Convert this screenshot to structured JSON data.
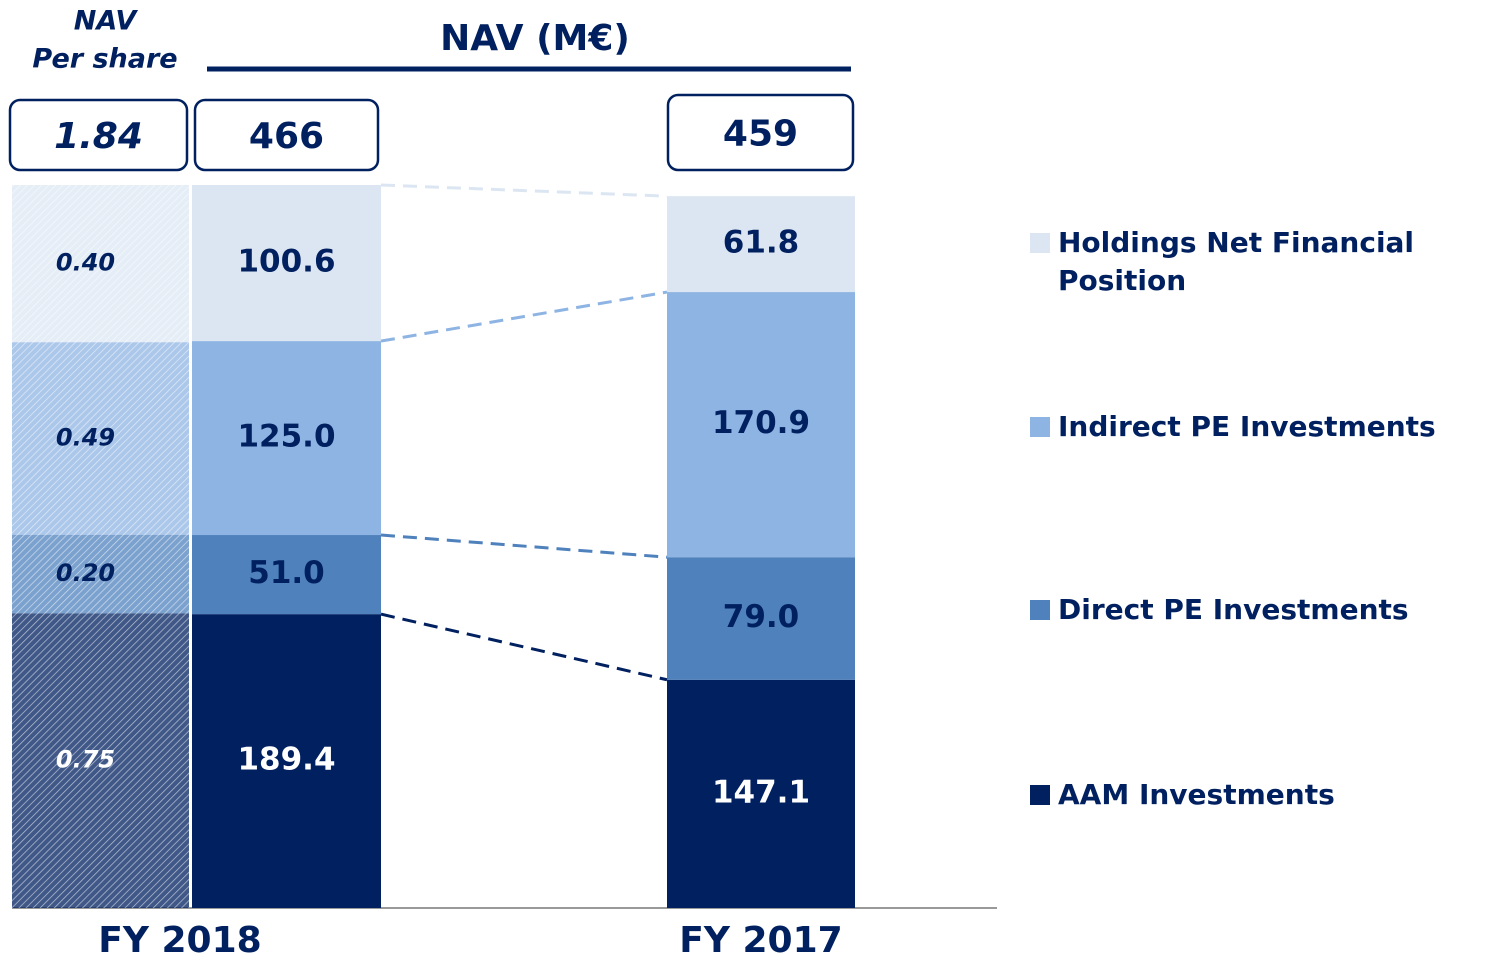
{
  "chart_data": [
    {
      "type": "stacked-bar",
      "title": [
        "NAV",
        "Per share"
      ],
      "ylim": [
        0,
        1.84
      ],
      "total": 1.84,
      "series": [
        {
          "color": "#002060",
          "values": [
            0.75
          ],
          "value_labels": [
            "0.75"
          ]
        },
        {
          "color": "#4f81bd",
          "values": [
            0.2
          ],
          "value_labels": [
            "0.20"
          ]
        },
        {
          "color": "#8eb4e3",
          "values": [
            0.49
          ],
          "value_labels": [
            "0.49"
          ]
        },
        {
          "color": "#dce6f2",
          "values": [
            0.4
          ],
          "value_labels": [
            "0.40"
          ]
        }
      ]
    },
    {
      "type": "stacked-bar",
      "title": "NAV (M€)",
      "categories": [
        "FY 2018",
        "FY 2017"
      ],
      "ylim": [
        0,
        466
      ],
      "totals": [
        466,
        459
      ],
      "series": [
        {
          "name": "AAM Investments",
          "color": "#002060",
          "values": [
            189.4,
            147.1
          ],
          "value_labels": [
            "189.4",
            "147.1"
          ]
        },
        {
          "name": "Direct PE Investments",
          "color": "#4f81bd",
          "values": [
            51,
            79
          ],
          "value_labels": [
            "51.0",
            "79.0"
          ]
        },
        {
          "name": "Indirect PE Investments",
          "color": "#8eb4e3",
          "values": [
            125,
            170.9
          ],
          "value_labels": [
            "125.0",
            "170.9"
          ]
        },
        {
          "name": "Holdings Net Financial Position",
          "color": "#dce6f2",
          "values": [
            100.6,
            61.8
          ],
          "value_labels": [
            "100.6",
            "61.8"
          ]
        }
      ]
    }
  ]
}
